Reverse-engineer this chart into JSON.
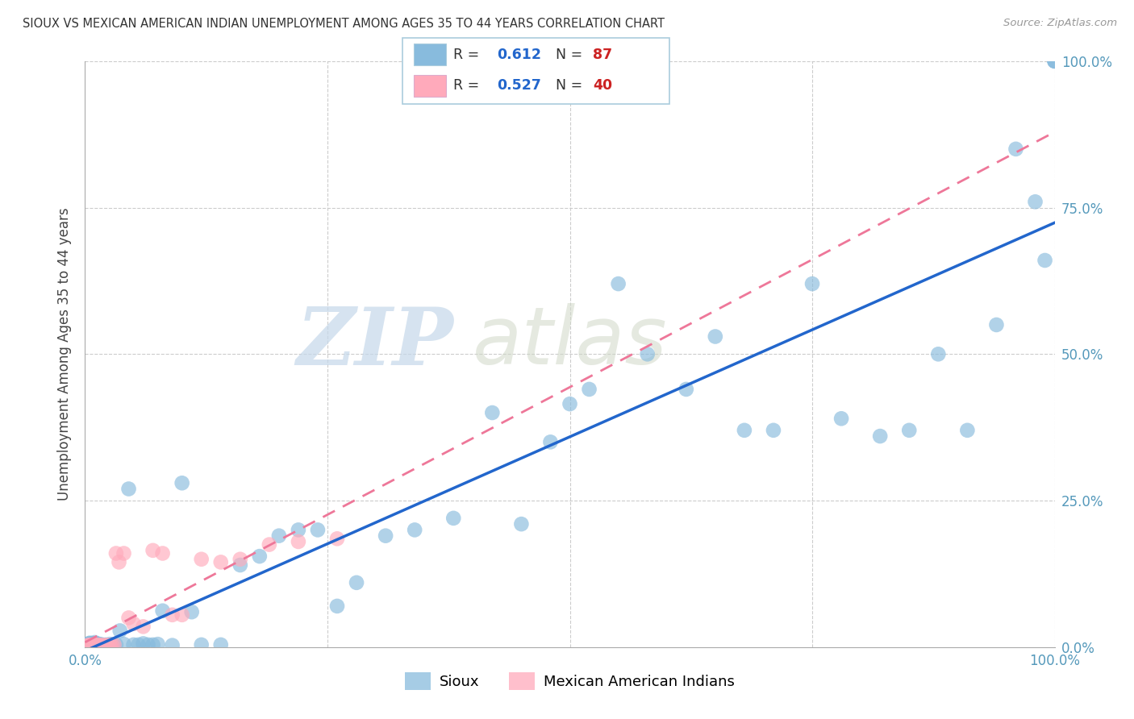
{
  "title": "SIOUX VS MEXICAN AMERICAN INDIAN UNEMPLOYMENT AMONG AGES 35 TO 44 YEARS CORRELATION CHART",
  "source": "Source: ZipAtlas.com",
  "ylabel": "Unemployment Among Ages 35 to 44 years",
  "sioux_R": 0.612,
  "sioux_N": 87,
  "mexican_R": 0.527,
  "mexican_N": 40,
  "y_ticks": [
    0.0,
    0.25,
    0.5,
    0.75,
    1.0
  ],
  "y_tick_labels": [
    "0.0%",
    "25.0%",
    "50.0%",
    "75.0%",
    "100.0%"
  ],
  "x_tick_labels": [
    "0.0%",
    "100.0%"
  ],
  "sioux_color": "#88BBDD",
  "mexican_color": "#FFAABB",
  "sioux_line_color": "#2266CC",
  "mexican_line_color": "#EE7799",
  "background_color": "#FFFFFF",
  "watermark_text": "ZIPatlas",
  "sioux_x": [
    0.002,
    0.003,
    0.003,
    0.004,
    0.004,
    0.005,
    0.005,
    0.005,
    0.006,
    0.006,
    0.007,
    0.007,
    0.008,
    0.008,
    0.008,
    0.009,
    0.009,
    0.01,
    0.01,
    0.01,
    0.011,
    0.011,
    0.012,
    0.012,
    0.013,
    0.013,
    0.014,
    0.015,
    0.015,
    0.016,
    0.017,
    0.018,
    0.02,
    0.022,
    0.024,
    0.026,
    0.028,
    0.032,
    0.036,
    0.04,
    0.045,
    0.05,
    0.055,
    0.06,
    0.065,
    0.07,
    0.075,
    0.08,
    0.09,
    0.1,
    0.11,
    0.12,
    0.14,
    0.16,
    0.18,
    0.2,
    0.22,
    0.24,
    0.26,
    0.28,
    0.31,
    0.34,
    0.38,
    0.42,
    0.45,
    0.48,
    0.5,
    0.52,
    0.55,
    0.58,
    0.62,
    0.65,
    0.68,
    0.71,
    0.75,
    0.78,
    0.82,
    0.85,
    0.88,
    0.91,
    0.94,
    0.96,
    0.98,
    0.99,
    1.0,
    1.0,
    1.0
  ],
  "sioux_y": [
    0.002,
    0.003,
    0.005,
    0.003,
    0.006,
    0.002,
    0.004,
    0.007,
    0.003,
    0.005,
    0.003,
    0.006,
    0.003,
    0.005,
    0.002,
    0.004,
    0.006,
    0.002,
    0.004,
    0.008,
    0.003,
    0.005,
    0.003,
    0.006,
    0.003,
    0.004,
    0.003,
    0.003,
    0.005,
    0.004,
    0.003,
    0.004,
    0.003,
    0.004,
    0.003,
    0.005,
    0.004,
    0.004,
    0.028,
    0.005,
    0.27,
    0.004,
    0.004,
    0.006,
    0.004,
    0.004,
    0.005,
    0.062,
    0.003,
    0.28,
    0.06,
    0.004,
    0.004,
    0.14,
    0.155,
    0.19,
    0.2,
    0.2,
    0.07,
    0.11,
    0.19,
    0.2,
    0.22,
    0.4,
    0.21,
    0.35,
    0.415,
    0.44,
    0.62,
    0.5,
    0.44,
    0.53,
    0.37,
    0.37,
    0.62,
    0.39,
    0.36,
    0.37,
    0.5,
    0.37,
    0.55,
    0.85,
    0.76,
    0.66,
    1.0,
    1.0,
    1.0
  ],
  "mexican_x": [
    0.002,
    0.003,
    0.004,
    0.005,
    0.006,
    0.007,
    0.008,
    0.008,
    0.009,
    0.01,
    0.01,
    0.011,
    0.012,
    0.013,
    0.014,
    0.015,
    0.016,
    0.018,
    0.02,
    0.022,
    0.024,
    0.026,
    0.028,
    0.03,
    0.032,
    0.035,
    0.04,
    0.045,
    0.05,
    0.06,
    0.07,
    0.08,
    0.09,
    0.1,
    0.12,
    0.14,
    0.16,
    0.19,
    0.22,
    0.26
  ],
  "mexican_y": [
    0.002,
    0.003,
    0.003,
    0.003,
    0.003,
    0.003,
    0.002,
    0.004,
    0.003,
    0.002,
    0.004,
    0.003,
    0.003,
    0.003,
    0.003,
    0.003,
    0.003,
    0.003,
    0.003,
    0.003,
    0.003,
    0.003,
    0.003,
    0.004,
    0.16,
    0.145,
    0.16,
    0.05,
    0.04,
    0.035,
    0.165,
    0.16,
    0.055,
    0.055,
    0.15,
    0.145,
    0.15,
    0.175,
    0.18,
    0.185
  ]
}
